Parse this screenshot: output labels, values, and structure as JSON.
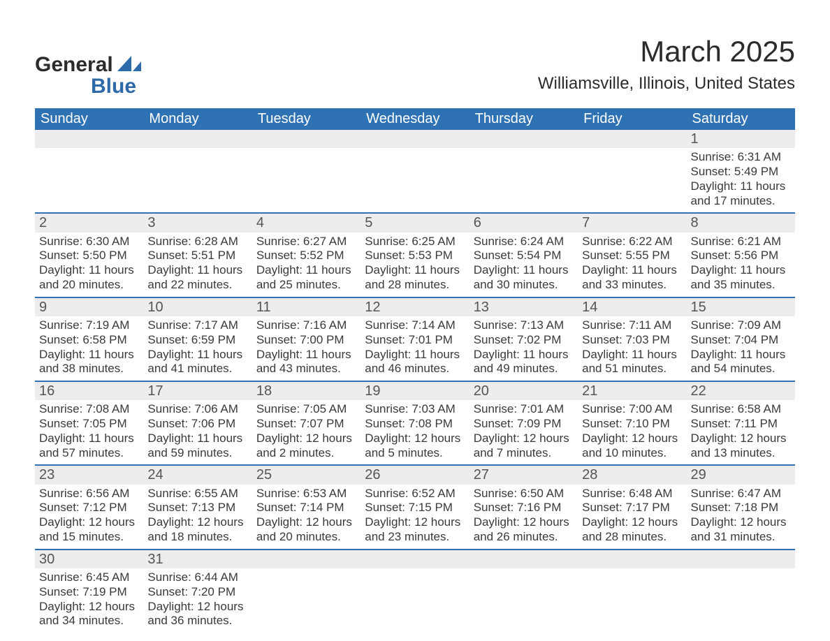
{
  "logo": {
    "line1": "General",
    "line2": "Blue"
  },
  "title": "March 2025",
  "location": "Williamsville, Illinois, United States",
  "header_color": "#2f72b4",
  "header_text_color": "#ffffff",
  "daynum_bg": "#ededed",
  "row_border_color": "#2f72b4",
  "text_color": "#3a3a3a",
  "days_of_week": [
    "Sunday",
    "Monday",
    "Tuesday",
    "Wednesday",
    "Thursday",
    "Friday",
    "Saturday"
  ],
  "weeks": [
    [
      null,
      null,
      null,
      null,
      null,
      null,
      {
        "n": "1",
        "sr": "Sunrise: 6:31 AM",
        "ss": "Sunset: 5:49 PM",
        "d1": "Daylight: 11 hours",
        "d2": "and 17 minutes."
      }
    ],
    [
      {
        "n": "2",
        "sr": "Sunrise: 6:30 AM",
        "ss": "Sunset: 5:50 PM",
        "d1": "Daylight: 11 hours",
        "d2": "and 20 minutes."
      },
      {
        "n": "3",
        "sr": "Sunrise: 6:28 AM",
        "ss": "Sunset: 5:51 PM",
        "d1": "Daylight: 11 hours",
        "d2": "and 22 minutes."
      },
      {
        "n": "4",
        "sr": "Sunrise: 6:27 AM",
        "ss": "Sunset: 5:52 PM",
        "d1": "Daylight: 11 hours",
        "d2": "and 25 minutes."
      },
      {
        "n": "5",
        "sr": "Sunrise: 6:25 AM",
        "ss": "Sunset: 5:53 PM",
        "d1": "Daylight: 11 hours",
        "d2": "and 28 minutes."
      },
      {
        "n": "6",
        "sr": "Sunrise: 6:24 AM",
        "ss": "Sunset: 5:54 PM",
        "d1": "Daylight: 11 hours",
        "d2": "and 30 minutes."
      },
      {
        "n": "7",
        "sr": "Sunrise: 6:22 AM",
        "ss": "Sunset: 5:55 PM",
        "d1": "Daylight: 11 hours",
        "d2": "and 33 minutes."
      },
      {
        "n": "8",
        "sr": "Sunrise: 6:21 AM",
        "ss": "Sunset: 5:56 PM",
        "d1": "Daylight: 11 hours",
        "d2": "and 35 minutes."
      }
    ],
    [
      {
        "n": "9",
        "sr": "Sunrise: 7:19 AM",
        "ss": "Sunset: 6:58 PM",
        "d1": "Daylight: 11 hours",
        "d2": "and 38 minutes."
      },
      {
        "n": "10",
        "sr": "Sunrise: 7:17 AM",
        "ss": "Sunset: 6:59 PM",
        "d1": "Daylight: 11 hours",
        "d2": "and 41 minutes."
      },
      {
        "n": "11",
        "sr": "Sunrise: 7:16 AM",
        "ss": "Sunset: 7:00 PM",
        "d1": "Daylight: 11 hours",
        "d2": "and 43 minutes."
      },
      {
        "n": "12",
        "sr": "Sunrise: 7:14 AM",
        "ss": "Sunset: 7:01 PM",
        "d1": "Daylight: 11 hours",
        "d2": "and 46 minutes."
      },
      {
        "n": "13",
        "sr": "Sunrise: 7:13 AM",
        "ss": "Sunset: 7:02 PM",
        "d1": "Daylight: 11 hours",
        "d2": "and 49 minutes."
      },
      {
        "n": "14",
        "sr": "Sunrise: 7:11 AM",
        "ss": "Sunset: 7:03 PM",
        "d1": "Daylight: 11 hours",
        "d2": "and 51 minutes."
      },
      {
        "n": "15",
        "sr": "Sunrise: 7:09 AM",
        "ss": "Sunset: 7:04 PM",
        "d1": "Daylight: 11 hours",
        "d2": "and 54 minutes."
      }
    ],
    [
      {
        "n": "16",
        "sr": "Sunrise: 7:08 AM",
        "ss": "Sunset: 7:05 PM",
        "d1": "Daylight: 11 hours",
        "d2": "and 57 minutes."
      },
      {
        "n": "17",
        "sr": "Sunrise: 7:06 AM",
        "ss": "Sunset: 7:06 PM",
        "d1": "Daylight: 11 hours",
        "d2": "and 59 minutes."
      },
      {
        "n": "18",
        "sr": "Sunrise: 7:05 AM",
        "ss": "Sunset: 7:07 PM",
        "d1": "Daylight: 12 hours",
        "d2": "and 2 minutes."
      },
      {
        "n": "19",
        "sr": "Sunrise: 7:03 AM",
        "ss": "Sunset: 7:08 PM",
        "d1": "Daylight: 12 hours",
        "d2": "and 5 minutes."
      },
      {
        "n": "20",
        "sr": "Sunrise: 7:01 AM",
        "ss": "Sunset: 7:09 PM",
        "d1": "Daylight: 12 hours",
        "d2": "and 7 minutes."
      },
      {
        "n": "21",
        "sr": "Sunrise: 7:00 AM",
        "ss": "Sunset: 7:10 PM",
        "d1": "Daylight: 12 hours",
        "d2": "and 10 minutes."
      },
      {
        "n": "22",
        "sr": "Sunrise: 6:58 AM",
        "ss": "Sunset: 7:11 PM",
        "d1": "Daylight: 12 hours",
        "d2": "and 13 minutes."
      }
    ],
    [
      {
        "n": "23",
        "sr": "Sunrise: 6:56 AM",
        "ss": "Sunset: 7:12 PM",
        "d1": "Daylight: 12 hours",
        "d2": "and 15 minutes."
      },
      {
        "n": "24",
        "sr": "Sunrise: 6:55 AM",
        "ss": "Sunset: 7:13 PM",
        "d1": "Daylight: 12 hours",
        "d2": "and 18 minutes."
      },
      {
        "n": "25",
        "sr": "Sunrise: 6:53 AM",
        "ss": "Sunset: 7:14 PM",
        "d1": "Daylight: 12 hours",
        "d2": "and 20 minutes."
      },
      {
        "n": "26",
        "sr": "Sunrise: 6:52 AM",
        "ss": "Sunset: 7:15 PM",
        "d1": "Daylight: 12 hours",
        "d2": "and 23 minutes."
      },
      {
        "n": "27",
        "sr": "Sunrise: 6:50 AM",
        "ss": "Sunset: 7:16 PM",
        "d1": "Daylight: 12 hours",
        "d2": "and 26 minutes."
      },
      {
        "n": "28",
        "sr": "Sunrise: 6:48 AM",
        "ss": "Sunset: 7:17 PM",
        "d1": "Daylight: 12 hours",
        "d2": "and 28 minutes."
      },
      {
        "n": "29",
        "sr": "Sunrise: 6:47 AM",
        "ss": "Sunset: 7:18 PM",
        "d1": "Daylight: 12 hours",
        "d2": "and 31 minutes."
      }
    ],
    [
      {
        "n": "30",
        "sr": "Sunrise: 6:45 AM",
        "ss": "Sunset: 7:19 PM",
        "d1": "Daylight: 12 hours",
        "d2": "and 34 minutes."
      },
      {
        "n": "31",
        "sr": "Sunrise: 6:44 AM",
        "ss": "Sunset: 7:20 PM",
        "d1": "Daylight: 12 hours",
        "d2": "and 36 minutes."
      },
      null,
      null,
      null,
      null,
      null
    ]
  ]
}
